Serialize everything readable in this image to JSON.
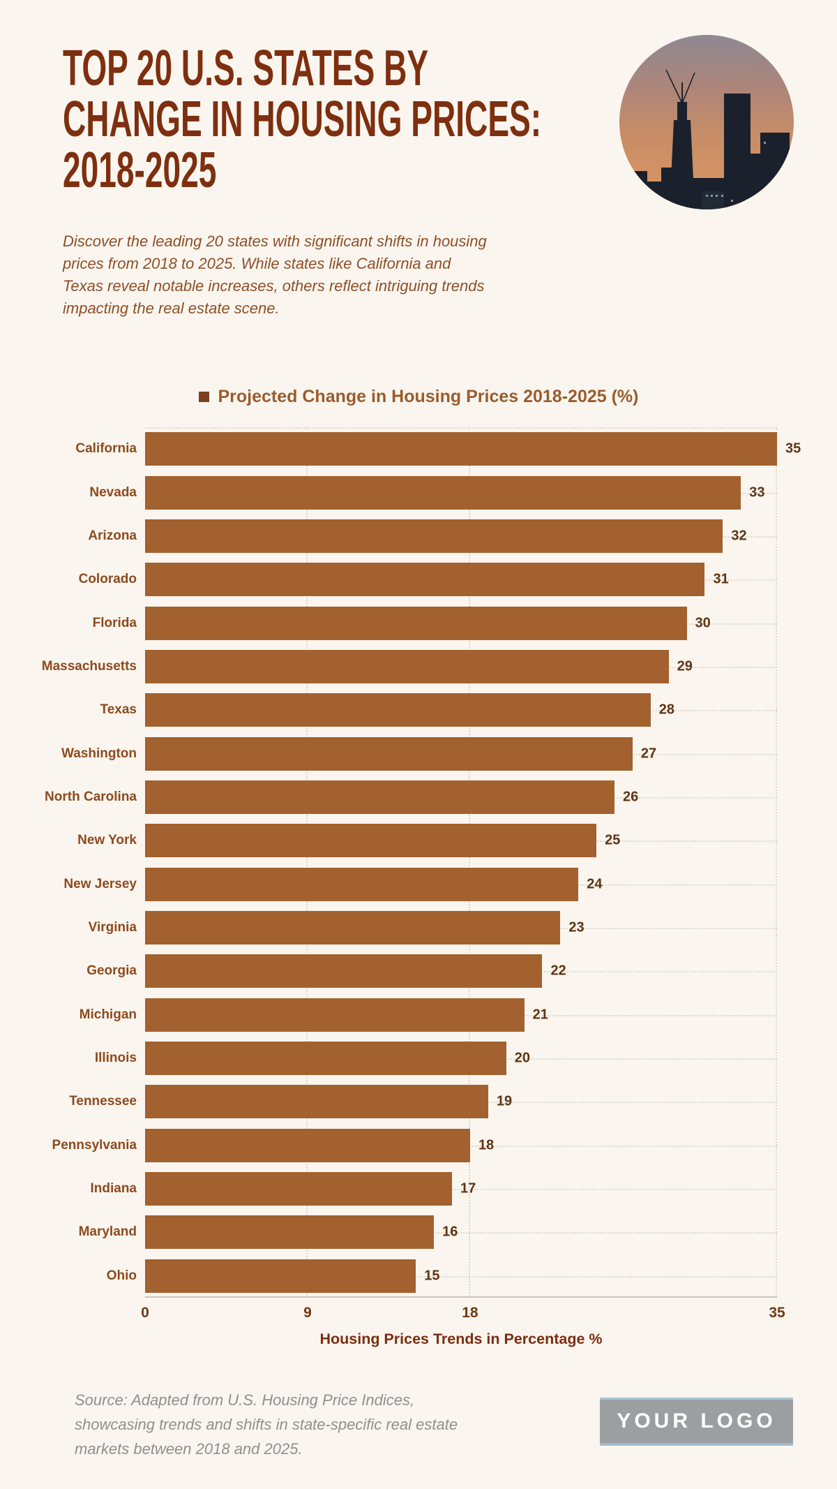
{
  "header": {
    "title_lines": [
      "TOP 20 U.S. STATES BY",
      "CHANGE IN HOUSING PRICES:",
      "2018-2025"
    ],
    "subtitle": "Discover the leading 20 states with significant shifts in housing prices from 2018 to 2025. While states like California and Texas reveal notable increases, others reflect intriguing trends impacting the real estate scene.",
    "hero_image": "city-skyline-sunset-photo"
  },
  "chart_data": {
    "type": "bar",
    "orientation": "horizontal",
    "title": "Projected Change in Housing Prices 2018-2025 (%)",
    "legend_position": "top",
    "categories": [
      "California",
      "Nevada",
      "Arizona",
      "Colorado",
      "Florida",
      "Massachusetts",
      "Texas",
      "Washington",
      "North Carolina",
      "New York",
      "New Jersey",
      "Virginia",
      "Georgia",
      "Michigan",
      "Illinois",
      "Tennessee",
      "Pennsylvania",
      "Indiana",
      "Maryland",
      "Ohio"
    ],
    "values": [
      35,
      33,
      32,
      31,
      30,
      29,
      28,
      27,
      26,
      25,
      24,
      23,
      22,
      21,
      20,
      19,
      18,
      17,
      16,
      15
    ],
    "xlabel": "Housing Prices Trends in Percentage %",
    "ylabel": "",
    "xlim": [
      0,
      35
    ],
    "xticks": [
      0,
      9,
      18,
      35
    ],
    "grid": "dotted"
  },
  "footer": {
    "source": "Source: Adapted from U.S. Housing Price Indices, showcasing trends and shifts in state-specific real estate markets between 2018 and 2025.",
    "logo_text": "YOUR LOGO"
  },
  "colors": {
    "background": "#faf6ef",
    "title": "#7e2f0f",
    "subtitle": "#8f4e28",
    "bar": "#a2612e",
    "category_label": "#8d4a1f",
    "value_label": "#5f3414",
    "legend_text": "#9a5c2e",
    "legend_swatch": "#7d4020",
    "axis_tick": "#6e3a16",
    "axis_title": "#7a2e10",
    "source_text": "#8f8f8f",
    "logo_background": "#9b9fa2",
    "logo_border": "#aac6d6",
    "logo_text": "#ffffff"
  }
}
